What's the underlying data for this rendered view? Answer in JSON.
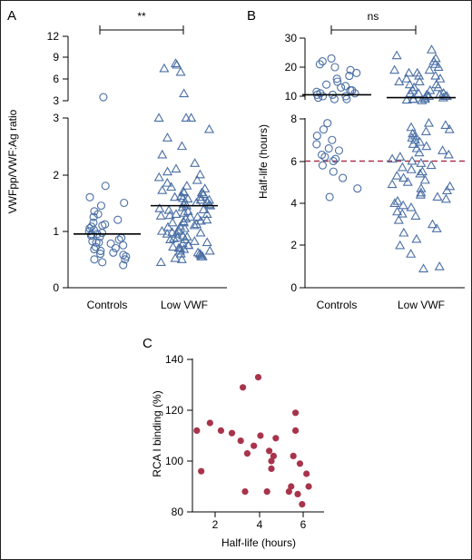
{
  "chart_data": [
    {
      "panel": "A",
      "type": "scatter",
      "ylabel": "VWFpp/VWF:Ag ratio",
      "categories": [
        "Controls",
        "Low VWF"
      ],
      "significance": "**",
      "y_lower_range": [
        0,
        3
      ],
      "y_lower_ticks": [
        "0",
        "1",
        "2",
        "3"
      ],
      "y_upper_range": [
        3,
        12
      ],
      "y_upper_ticks": [
        "3",
        "6",
        "9",
        "12"
      ],
      "series": [
        {
          "category": "Controls",
          "marker": "circle",
          "median": 0.95,
          "values": [
            0.4,
            0.45,
            0.5,
            0.5,
            0.55,
            0.58,
            0.6,
            0.62,
            0.65,
            0.68,
            0.7,
            0.72,
            0.75,
            0.78,
            0.8,
            0.8,
            0.82,
            0.85,
            0.88,
            0.9,
            0.92,
            0.95,
            0.95,
            0.97,
            1.0,
            1.02,
            1.05,
            1.08,
            1.1,
            1.12,
            1.15,
            1.2,
            1.25,
            1.3,
            1.35,
            1.45,
            1.5,
            1.6,
            1.8,
            3.5
          ]
        },
        {
          "category": "Low VWF",
          "marker": "triangle",
          "median": 1.45,
          "values": [
            0.45,
            0.5,
            0.52,
            0.55,
            0.58,
            0.6,
            0.62,
            0.65,
            0.68,
            0.7,
            0.72,
            0.75,
            0.78,
            0.8,
            0.82,
            0.85,
            0.87,
            0.9,
            0.92,
            0.95,
            0.97,
            1.0,
            1.02,
            1.05,
            1.07,
            1.1,
            1.12,
            1.15,
            1.17,
            1.2,
            1.22,
            1.25,
            1.27,
            1.3,
            1.32,
            1.35,
            1.37,
            1.4,
            1.42,
            1.45,
            1.47,
            1.5,
            1.52,
            1.55,
            1.57,
            1.6,
            1.62,
            1.65,
            1.68,
            1.7,
            1.72,
            1.75,
            1.78,
            1.8,
            1.85,
            1.9,
            1.95,
            2.0,
            2.05,
            2.1,
            2.2,
            2.35,
            2.5,
            2.65,
            2.8,
            0.6,
            0.75,
            0.88,
            0.98,
            1.08,
            1.18,
            1.28,
            1.38,
            1.48,
            1.58,
            1.68,
            0.55,
            0.7,
            0.85,
            1.0,
            1.15,
            1.3,
            1.45,
            1.6,
            0.65,
            0.95,
            1.25,
            1.55,
            3.0,
            3.0,
            3.0,
            4.0,
            7.0,
            7.5,
            8.0,
            8.2
          ]
        }
      ]
    },
    {
      "panel": "B",
      "type": "scatter",
      "ylabel": "Half-life (hours)",
      "categories": [
        "Controls",
        "Low VWF"
      ],
      "significance": "ns",
      "reference_line": 6,
      "y_lower_range": [
        0,
        8
      ],
      "y_lower_ticks": [
        "0",
        "2",
        "4",
        "6",
        "8"
      ],
      "y_upper_range": [
        8,
        30
      ],
      "y_upper_ticks": [
        "10",
        "20",
        "30"
      ],
      "series": [
        {
          "category": "Controls",
          "marker": "circle",
          "median": 10.5,
          "values": [
            4.3,
            4.7,
            5.2,
            5.5,
            5.8,
            6.0,
            6.1,
            6.2,
            6.3,
            6.5,
            6.6,
            6.8,
            7.0,
            7.2,
            7.5,
            7.8,
            9,
            9,
            9.5,
            10,
            10,
            10.5,
            10.5,
            11,
            11,
            11.5,
            12,
            12,
            13,
            13.5,
            14,
            15,
            16,
            17,
            18,
            19,
            20,
            21,
            22,
            23
          ]
        },
        {
          "category": "Low VWF",
          "marker": "triangle",
          "median": 9.5,
          "values": [
            0.9,
            1.0,
            1.6,
            2.0,
            2.3,
            2.6,
            2.8,
            3.0,
            3.2,
            3.4,
            3.5,
            3.6,
            3.8,
            3.9,
            4.0,
            4.1,
            4.2,
            4.3,
            4.4,
            4.5,
            4.6,
            4.7,
            4.8,
            4.9,
            5.0,
            5.1,
            5.2,
            5.3,
            5.4,
            5.5,
            5.6,
            5.7,
            5.8,
            5.9,
            6.0,
            6.1,
            6.2,
            6.3,
            6.4,
            6.5,
            6.6,
            6.7,
            6.8,
            6.9,
            7.0,
            7.1,
            7.2,
            7.3,
            7.4,
            7.5,
            7.6,
            7.7,
            7.8,
            8.5,
            8.7,
            9,
            9,
            9,
            9.5,
            9.5,
            10,
            10,
            10,
            10.5,
            10.5,
            11,
            11,
            11,
            12,
            12,
            13,
            13,
            14,
            14,
            15,
            15,
            16,
            16,
            17,
            17,
            18,
            18,
            19,
            19,
            20,
            21,
            22,
            23,
            24,
            26
          ]
        }
      ]
    },
    {
      "panel": "C",
      "type": "scatter",
      "xlabel": "Half-life (hours)",
      "ylabel": "RCA I binding (%)",
      "xlim": [
        1,
        7
      ],
      "ylim": [
        80,
        140
      ],
      "x_ticks": [
        "2",
        "4",
        "6"
      ],
      "y_ticks": [
        "80",
        "100",
        "120",
        "140"
      ],
      "points": [
        {
          "x": 1.2,
          "y": 112
        },
        {
          "x": 1.4,
          "y": 96
        },
        {
          "x": 1.8,
          "y": 115
        },
        {
          "x": 2.3,
          "y": 112
        },
        {
          "x": 2.8,
          "y": 111
        },
        {
          "x": 3.2,
          "y": 108
        },
        {
          "x": 3.3,
          "y": 129
        },
        {
          "x": 3.4,
          "y": 88
        },
        {
          "x": 3.5,
          "y": 103
        },
        {
          "x": 3.8,
          "y": 106
        },
        {
          "x": 4.0,
          "y": 133
        },
        {
          "x": 4.1,
          "y": 110
        },
        {
          "x": 4.4,
          "y": 88
        },
        {
          "x": 4.5,
          "y": 104
        },
        {
          "x": 4.6,
          "y": 100
        },
        {
          "x": 4.6,
          "y": 97
        },
        {
          "x": 4.7,
          "y": 102
        },
        {
          "x": 4.8,
          "y": 109
        },
        {
          "x": 5.4,
          "y": 88
        },
        {
          "x": 5.5,
          "y": 90
        },
        {
          "x": 5.6,
          "y": 102
        },
        {
          "x": 5.7,
          "y": 112
        },
        {
          "x": 5.7,
          "y": 119
        },
        {
          "x": 5.8,
          "y": 87
        },
        {
          "x": 5.9,
          "y": 99
        },
        {
          "x": 6.0,
          "y": 83
        },
        {
          "x": 6.2,
          "y": 95
        },
        {
          "x": 6.3,
          "y": 90
        }
      ]
    }
  ]
}
